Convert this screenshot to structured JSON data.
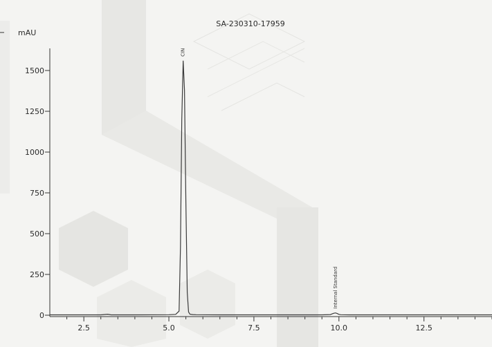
{
  "chart_data": {
    "type": "line",
    "title": "SA-230310-17959",
    "ylabel": "mAU",
    "xlabel": "",
    "xlim": [
      1.5,
      14.5
    ],
    "ylim": [
      -20,
      1650
    ],
    "x_ticks": [
      2.5,
      5.0,
      7.5,
      10.0,
      12.5
    ],
    "x_tick_labels": [
      "2.5",
      "5.0",
      "7.5",
      "10.0",
      "12.5"
    ],
    "y_ticks": [
      0,
      250,
      500,
      750,
      1000,
      1250,
      1500
    ],
    "y_tick_labels": [
      "0",
      "250",
      "500",
      "750",
      "1000",
      "1250",
      "1500"
    ],
    "grid": false,
    "series": [
      {
        "color": "#3a3a3a",
        "x": [
          1.5,
          2.0,
          3.0,
          3.2,
          3.3,
          4.0,
          5.0,
          5.2,
          5.3,
          5.34,
          5.38,
          5.42,
          5.46,
          5.5,
          5.54,
          5.58,
          5.62,
          5.7,
          5.8,
          6.5,
          7.5,
          8.5,
          9.5,
          9.75,
          9.8,
          9.85,
          9.9,
          9.95,
          10.0,
          10.05,
          10.3,
          11.0,
          12.0,
          13.0,
          14.5
        ],
        "y": [
          2,
          2,
          2,
          6,
          2,
          2,
          3,
          5,
          25,
          420,
          1200,
          1560,
          1380,
          700,
          140,
          20,
          6,
          4,
          3,
          2,
          2,
          2,
          2,
          4,
          8,
          12,
          14,
          10,
          5,
          3,
          2,
          2,
          2,
          2,
          2
        ]
      }
    ],
    "annotations": [
      {
        "x": 5.42,
        "y": 1560,
        "text": "CIN"
      },
      {
        "x": 9.9,
        "y": 14,
        "text": "Internal Standard"
      }
    ]
  }
}
